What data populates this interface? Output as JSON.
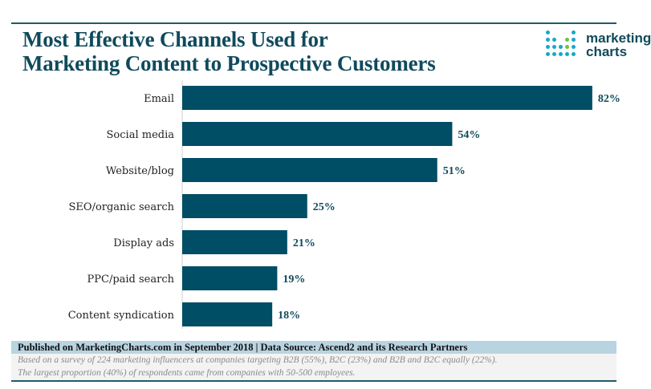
{
  "header": {
    "title_line1": "Most Effective Channels Used for",
    "title_line2": "Marketing Content to Prospective Customers",
    "logo_text_line1": "marketing",
    "logo_text_line2": "charts",
    "colors": {
      "bar": "#004d66",
      "title": "#0f4a5c",
      "label": "#222222"
    }
  },
  "chart_data": {
    "type": "bar",
    "orientation": "horizontal",
    "title": "Most Effective Channels Used for Marketing Content to Prospective Customers",
    "categories": [
      "Email",
      "Social media",
      "Website/blog",
      "SEO/organic search",
      "Display ads",
      "PPC/paid search",
      "Content syndication"
    ],
    "values": [
      82,
      54,
      51,
      25,
      21,
      19,
      18
    ],
    "value_labels": [
      "82%",
      "54%",
      "51%",
      "25%",
      "21%",
      "19%",
      "18%"
    ],
    "unit": "%",
    "xlim": [
      0,
      100
    ],
    "grid": false
  },
  "footer": {
    "source": "Published on MarketingCharts.com in September 2018 | Data Source: Ascend2 and its Research Partners",
    "note1": "Based on a survey of 224 marketing influencers at companies targeting B2B (55%), B2C (23%) and B2B and B2C equally (22%).",
    "note2": "The largest proportion (40%) of respondents came from companies with 50-500 employees."
  }
}
